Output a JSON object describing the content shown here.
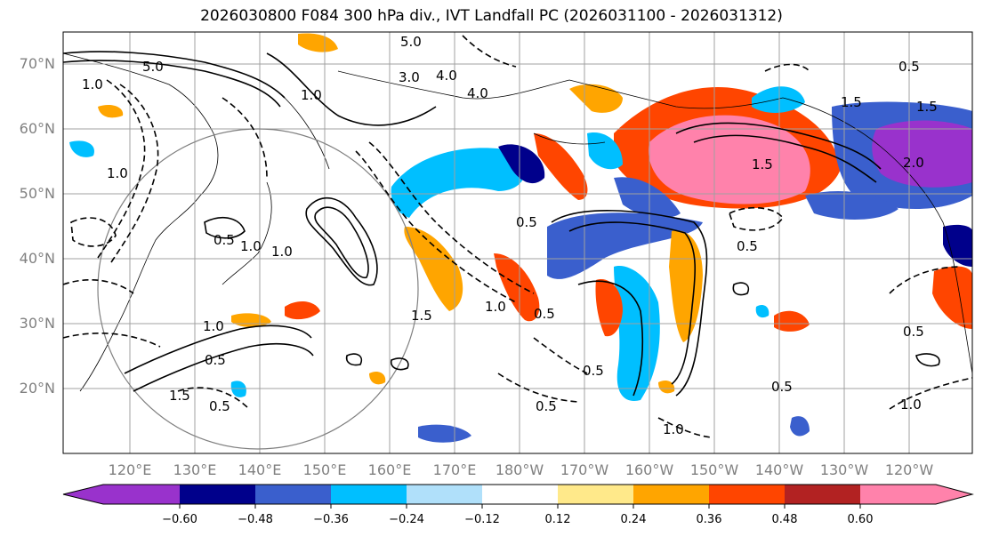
{
  "title": "2026030800 F084 300 hPa div., IVT Landfall PC (2026031100 - 2026031312)",
  "lat_labels": [
    "70°N",
    "60°N",
    "50°N",
    "40°N",
    "30°N",
    "20°N"
  ],
  "lon_labels": [
    "120°E",
    "130°E",
    "140°E",
    "150°E",
    "160°E",
    "170°E",
    "180°W",
    "170°W",
    "160°W",
    "150°W",
    "140°W",
    "130°W",
    "120°W"
  ],
  "colorbar": {
    "ticks": [
      "−0.60",
      "−0.48",
      "−0.36",
      "−0.24",
      "−0.12",
      "0.12",
      "0.24",
      "0.36",
      "0.48",
      "0.60"
    ],
    "colors": [
      "#9932cc",
      "#00008b",
      "#3a5fcd",
      "#00bfff",
      "#b0e0fa",
      "#ffffff",
      "#ffe98a",
      "#ffa500",
      "#ff4500",
      "#b22222",
      "#ff82ab"
    ]
  },
  "colors": {
    "contour": "#000000",
    "grid": "#a0a0a0",
    "axis_label": "#808080"
  },
  "contour_labels": [
    "5.0",
    "4.0",
    "3.0",
    "1.0",
    "5.0",
    "1.0",
    "4.0",
    "1.0",
    "1.5",
    "0.5",
    "0.5",
    "1.0",
    "0.5",
    "1.0",
    "1.5",
    "0.5",
    "1.5",
    "0.5",
    "0.5",
    "1.0",
    "0.5",
    "2.0",
    "1.5",
    "0.5",
    "1.0",
    "0.5",
    "1.0",
    "0.5",
    "0.5",
    "1.5",
    "1.0"
  ]
}
